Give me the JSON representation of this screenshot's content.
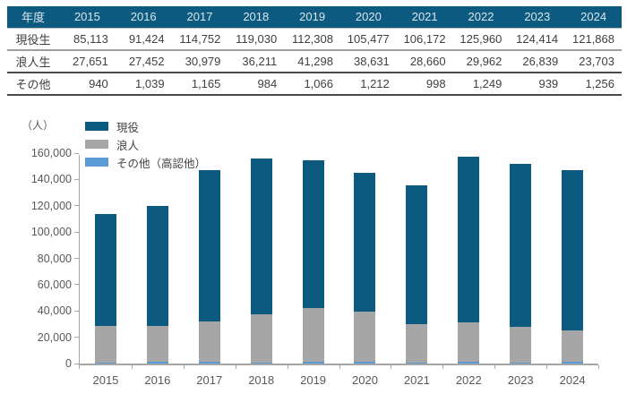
{
  "table": {
    "year_header_label": "年度",
    "years": [
      "2015",
      "2016",
      "2017",
      "2018",
      "2019",
      "2020",
      "2021",
      "2022",
      "2023",
      "2024"
    ],
    "rows": [
      {
        "label": "現役生",
        "values": [
          "85,113",
          "91,424",
          "114,752",
          "119,030",
          "112,308",
          "105,477",
          "106,172",
          "125,960",
          "124,414",
          "121,868"
        ]
      },
      {
        "label": "浪人生",
        "values": [
          "27,651",
          "27,452",
          "30,979",
          "36,211",
          "41,298",
          "38,631",
          "28,660",
          "29,962",
          "26,839",
          "23,703"
        ]
      },
      {
        "label": "その他",
        "values": [
          "940",
          "1,039",
          "1,165",
          "984",
          "1,066",
          "1,212",
          "998",
          "1,249",
          "939",
          "1,256"
        ]
      }
    ]
  },
  "chart_data": {
    "type": "bar",
    "stacked": true,
    "title": "",
    "unit_label": "（人）",
    "xlabel": "",
    "ylabel": "人",
    "categories": [
      "2015",
      "2016",
      "2017",
      "2018",
      "2019",
      "2020",
      "2021",
      "2022",
      "2023",
      "2024"
    ],
    "series": [
      {
        "name": "現役",
        "color": "#0d5a80",
        "values": [
          85113,
          91424,
          114752,
          119030,
          112308,
          105477,
          106172,
          125960,
          124414,
          121868
        ]
      },
      {
        "name": "浪人",
        "color": "#a6a6a6",
        "values": [
          27651,
          27452,
          30979,
          36211,
          41298,
          38631,
          28660,
          29962,
          26839,
          23703
        ]
      },
      {
        "name": "その他（高認他）",
        "color": "#5b9bd5",
        "values": [
          940,
          1039,
          1165,
          984,
          1066,
          1212,
          998,
          1249,
          939,
          1256
        ]
      }
    ],
    "stack_order_bottom_to_top": [
      "その他（高認他）",
      "浪人",
      "現役"
    ],
    "ylim": [
      0,
      160000
    ],
    "ytick_labels": [
      "0",
      "20,000",
      "40,000",
      "60,000",
      "80,000",
      "100,000",
      "120,000",
      "140,000",
      "160,000"
    ],
    "legend_position": "top-left",
    "grid": false
  },
  "colors": {
    "table_header_bg": "#0d5a80",
    "table_header_text": "#dbe5ec",
    "table_text": "#3f3f3f",
    "bar_current": "#0d5a80",
    "bar_ronin": "#a6a6a6",
    "bar_other": "#5b9bd5",
    "axis": "#a6a6a6",
    "tick_text": "#595959"
  }
}
